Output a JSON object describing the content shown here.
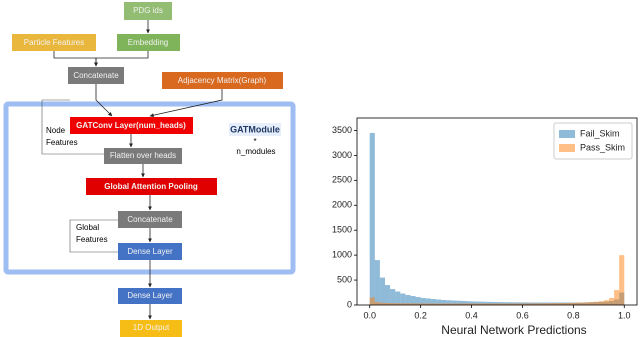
{
  "diagram": {
    "nodes": {
      "pdg_ids": "PDG ids",
      "particle_features": "Particle Features",
      "embedding": "Embedding",
      "concatenate_1": "Concatenate",
      "adjacency": "Adjacency Matrix(Graph)",
      "gatconv": "GATConv Layer(num_heads)",
      "flatten": "Flatten over heads",
      "pooling": "Global Attention Pooling",
      "concatenate_2": "Concatenate",
      "dense_1": "Dense Layer",
      "dense_2": "Dense Layer",
      "output": "1D Output"
    },
    "module_label": "GATModule",
    "module_times": "*",
    "module_count": "n_modules",
    "node_features": [
      "Node",
      "Features"
    ],
    "global_features": [
      "Global",
      "Features"
    ]
  },
  "chart_data": {
    "type": "histogram",
    "xlabel": "Neural Network Predictions",
    "bins": [
      0,
      0.02,
      0.04,
      0.06,
      0.08,
      0.1,
      0.12,
      0.14,
      0.16,
      0.18,
      0.2,
      0.22,
      0.24,
      0.26,
      0.28,
      0.3,
      0.32,
      0.34,
      0.36,
      0.38,
      0.4,
      0.42,
      0.44,
      0.46,
      0.48,
      0.5,
      0.52,
      0.54,
      0.56,
      0.58,
      0.6,
      0.62,
      0.64,
      0.66,
      0.68,
      0.7,
      0.72,
      0.74,
      0.76,
      0.78,
      0.8,
      0.82,
      0.84,
      0.86,
      0.88,
      0.9,
      0.92,
      0.94,
      0.96,
      0.98,
      1
    ],
    "series": [
      {
        "name": "Fail_Skim",
        "color": "#1f77b4",
        "values": [
          3450,
          900,
          550,
          400,
          320,
          270,
          230,
          200,
          180,
          160,
          140,
          130,
          120,
          110,
          100,
          95,
          90,
          85,
          80,
          75,
          70,
          68,
          65,
          62,
          60,
          58,
          56,
          55,
          54,
          53,
          52,
          51,
          50,
          50,
          50,
          50,
          50,
          50,
          50,
          50,
          50,
          50,
          52,
          55,
          58,
          62,
          68,
          80,
          110,
          250
        ]
      },
      {
        "name": "Pass_Skim",
        "color": "#ff7f0e",
        "values": [
          150,
          60,
          45,
          40,
          38,
          36,
          35,
          34,
          33,
          32,
          32,
          31,
          31,
          30,
          30,
          30,
          30,
          30,
          30,
          30,
          30,
          30,
          30,
          30,
          30,
          30,
          30,
          30,
          30,
          30,
          30,
          31,
          32,
          33,
          34,
          35,
          36,
          38,
          40,
          42,
          45,
          48,
          52,
          58,
          65,
          75,
          95,
          140,
          300,
          1000
        ]
      }
    ],
    "alpha": 0.5,
    "xlim": [
      -0.05,
      1.05
    ],
    "ylim": [
      0,
      3750
    ],
    "xticks": [
      {
        "value": 0,
        "label": "0.0"
      },
      0.2,
      0.4,
      0.6,
      0.8,
      {
        "value": 1,
        "label": "1.0"
      }
    ],
    "yticks": [
      0,
      500,
      1000,
      1500,
      2000,
      2500,
      3000,
      3500
    ],
    "legend": "upper right"
  }
}
